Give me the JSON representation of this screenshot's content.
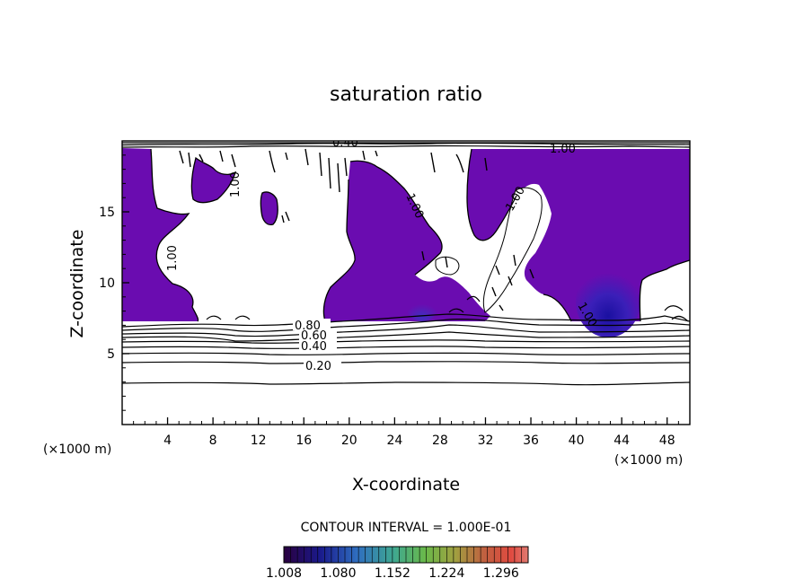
{
  "chart_data": {
    "type": "contour",
    "title": "saturation ratio",
    "xlabel": "X-coordinate",
    "ylabel": "Z-coordinate",
    "x_unit": "(×1000 m)",
    "z_unit": "(×1000 m)",
    "xlim": [
      0,
      50
    ],
    "ylim": [
      0,
      20
    ],
    "x_ticks": [
      "4",
      "8",
      "12",
      "16",
      "20",
      "24",
      "28",
      "32",
      "36",
      "40",
      "44",
      "48"
    ],
    "y_ticks": [
      "5",
      "10",
      "15"
    ],
    "contour_interval_text": "CONTOUR INTERVAL = 1.000E-01",
    "contour_labels": [
      "0.20",
      "0.40",
      "0.60",
      "0.80",
      "1.00",
      "0.40"
    ],
    "colorbar": {
      "min": 1.008,
      "max": 1.332,
      "tick_labels": [
        "1.008",
        "1.080",
        "1.152",
        "1.224",
        "1.296"
      ],
      "colors": [
        "#2a003f",
        "#1a1a8c",
        "#2f6ec0",
        "#3fa890",
        "#6ab94a",
        "#a0a040",
        "#c06040",
        "#e04a40",
        "#e07a70"
      ]
    },
    "colors": {
      "supersaturated_fill": "#6a0cb0",
      "deep_core": "#2a1aa8"
    }
  }
}
